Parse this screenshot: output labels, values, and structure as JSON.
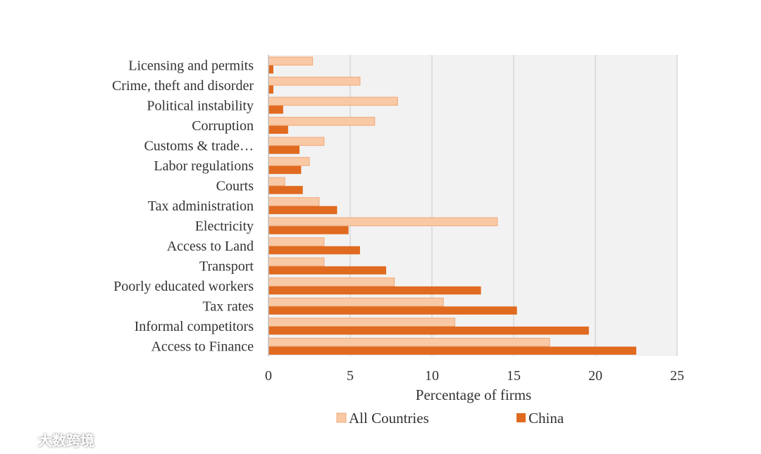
{
  "chart_data": {
    "type": "bar",
    "orientation": "horizontal",
    "categories": [
      "Licensing and permits",
      "Crime, theft and disorder",
      "Political instability",
      "Corruption",
      "Customs & trade…",
      "Labor regulations",
      "Courts",
      "Tax administration",
      "Electricity",
      "Access to Land",
      "Transport",
      "Poorly educated workers",
      "Tax rates",
      "Informal competitors",
      "Access to Finance"
    ],
    "series": [
      {
        "name": "All Countries",
        "color": "#f9c9a6",
        "values": [
          2.7,
          5.6,
          7.9,
          6.5,
          3.4,
          2.5,
          1.0,
          3.1,
          14.0,
          3.4,
          3.4,
          7.7,
          10.7,
          11.4,
          17.2
        ]
      },
      {
        "name": "China",
        "color": "#e06a1f",
        "values": [
          0.3,
          0.3,
          0.9,
          1.2,
          1.9,
          2.0,
          2.1,
          4.2,
          4.9,
          5.6,
          7.2,
          13.0,
          15.2,
          19.6,
          22.5
        ]
      }
    ],
    "xlabel": "Percentage  of firms",
    "xticks": [
      "0",
      "5",
      "10",
      "15",
      "20",
      "25"
    ],
    "xlim": [
      0,
      25
    ],
    "grid": "vertical",
    "legend_position": "bottom"
  },
  "watermark": {
    "brand": "大数跨境",
    "logo_icon": "chat-bubble-icon"
  }
}
